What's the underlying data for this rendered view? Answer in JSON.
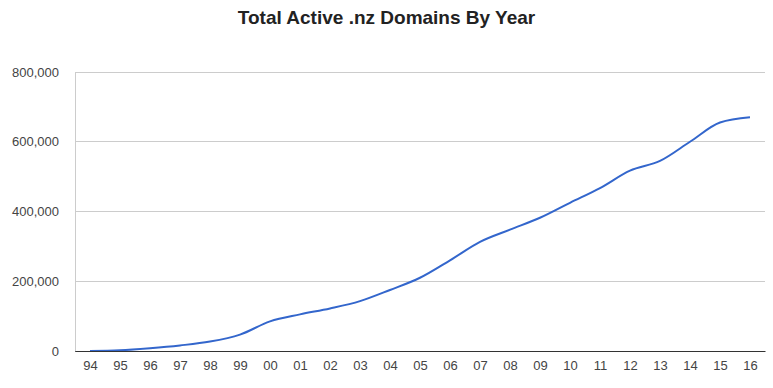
{
  "chart_data": {
    "type": "line",
    "title": "Total Active .nz Domains By Year",
    "categories": [
      "94",
      "95",
      "96",
      "97",
      "98",
      "99",
      "00",
      "01",
      "02",
      "03",
      "04",
      "05",
      "06",
      "07",
      "08",
      "09",
      "10",
      "11",
      "12",
      "13",
      "14",
      "15",
      "16"
    ],
    "values": [
      0,
      2000,
      8000,
      16000,
      27000,
      47000,
      85000,
      105000,
      122000,
      143000,
      175000,
      210000,
      260000,
      313000,
      348000,
      382000,
      425000,
      467000,
      517000,
      545000,
      600000,
      655000,
      670000
    ],
    "color": "#3366cc",
    "ylim": [
      0,
      800000
    ],
    "yticks": [
      0,
      {
        "value": 200000,
        "label": "200,000"
      },
      {
        "value": 400000,
        "label": "400,000"
      },
      {
        "value": 600000,
        "label": "600,000"
      },
      {
        "value": 800000,
        "label": "800,000"
      }
    ],
    "grid": true
  }
}
